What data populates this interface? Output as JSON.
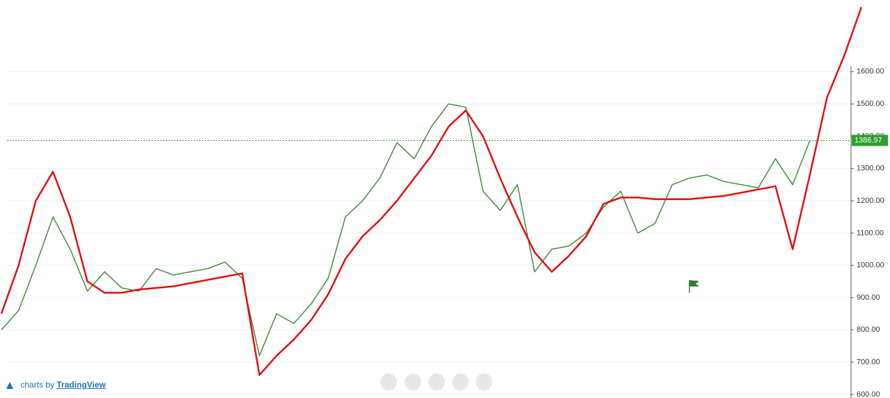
{
  "chart_data": {
    "type": "line",
    "series": [
      {
        "name": null,
        "color": "#3f8f3a",
        "width": 1.5,
        "values": [
          800,
          860,
          1000,
          1150,
          1050,
          920,
          980,
          930,
          920,
          990,
          970,
          980,
          990,
          1010,
          960,
          720,
          850,
          820,
          880,
          960,
          1150,
          1200,
          1270,
          1380,
          1330,
          1430,
          1500,
          1490,
          1230,
          1170,
          1250,
          980,
          1050,
          1060,
          1100,
          1180,
          1230,
          1100,
          1130,
          1250,
          1270,
          1280,
          1260,
          1250,
          1240,
          1330,
          1250,
          1386.97,
          null,
          null,
          null
        ]
      },
      {
        "name": null,
        "color": "#e01010",
        "width": 2.5,
        "values": [
          850,
          1000,
          1200,
          1290,
          1150,
          950,
          915,
          915,
          925,
          930,
          935,
          945,
          955,
          965,
          975,
          660,
          720,
          770,
          830,
          910,
          1020,
          1090,
          1140,
          1200,
          1270,
          1340,
          1430,
          1480,
          1400,
          1270,
          1150,
          1040,
          980,
          1030,
          1090,
          1190,
          1210,
          1210,
          1205,
          1205,
          1205,
          1210,
          1215,
          1225,
          1235,
          1245,
          1050,
          1280,
          1520,
          1650,
          1800
        ]
      }
    ],
    "ylim": [
      589,
      1822
    ],
    "yticks": [
      {
        "value": 600,
        "label": "600.00"
      },
      {
        "value": 700,
        "label": "700.00"
      },
      {
        "value": 800,
        "label": "800.00"
      },
      {
        "value": 900,
        "label": "900.00"
      },
      {
        "value": 1000,
        "label": "1000.00"
      },
      {
        "value": 1100,
        "label": "1100.00"
      },
      {
        "value": 1200,
        "label": "1200.00"
      },
      {
        "value": 1300,
        "label": "1300.00"
      },
      {
        "value": 1400,
        "label": "1400.00"
      },
      {
        "value": 1500,
        "label": "1500.00"
      },
      {
        "value": 1600,
        "label": "1600.00"
      }
    ],
    "grid": true,
    "last_price_color": "#2ca02c"
  },
  "attribution": {
    "prefix": "charts by",
    "link": "TradingView"
  }
}
